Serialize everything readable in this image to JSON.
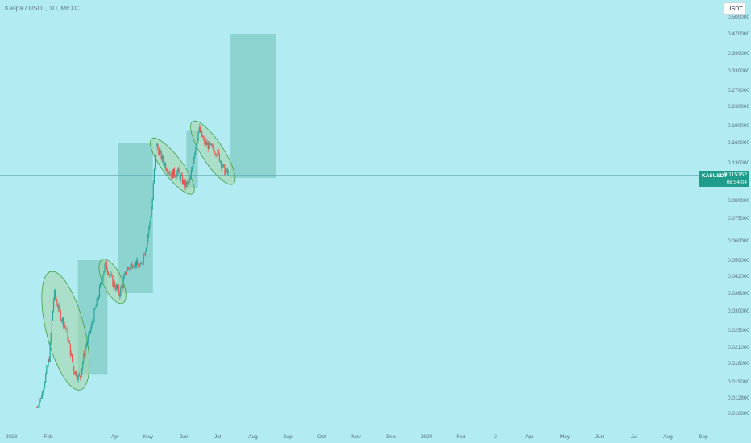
{
  "header": {
    "title": "Kaspa / USDT, 1D, MEXC",
    "currency_button": "USDT"
  },
  "price_tag": {
    "symbol": "KASUSDT",
    "price": "0.115352",
    "countdown": "08:54:04",
    "color": "#1f9d8a"
  },
  "colors": {
    "background": "#b2ebf2",
    "up": "#26a69a",
    "down": "#ef5350",
    "box": "#80cbc4",
    "ellipse_fill": "#a5d6a7",
    "ellipse_stroke": "#43a047"
  },
  "chart_data": {
    "type": "candlestick",
    "symbol": "KASUSDT",
    "exchange": "MEXC",
    "timeframe": "1D",
    "y_scale": "log",
    "y_ticks": [
      "0.500000",
      "0.470000",
      "0.390000",
      "0.330000",
      "0.270000",
      "0.230000",
      "0.190000",
      "0.160000",
      "0.130000",
      "0.090000",
      "0.075000",
      "0.060000",
      "0.050000",
      "0.042000",
      "0.036000",
      "0.030000",
      "0.025000",
      "0.021000",
      "0.018000",
      "0.015000",
      "0.012800",
      "0.010000"
    ],
    "x_ticks": [
      "2023",
      "Feb",
      "Apr",
      "May",
      "Jun",
      "Jul",
      "Aug",
      "Sep",
      "Oct",
      "Nov",
      "Dec",
      "2024",
      "Feb",
      "2",
      "Apr",
      "May",
      "Jun",
      "Jul",
      "Aug",
      "Sep"
    ],
    "last_price": 0.115352,
    "approx_price_path": [
      {
        "date": "2023-02-28",
        "price": 0.011
      },
      {
        "date": "2023-03-12",
        "price": 0.0135
      },
      {
        "date": "2023-03-28",
        "price": 0.019
      },
      {
        "date": "2023-04-08",
        "price": 0.036
      },
      {
        "date": "2023-04-22",
        "price": 0.029
      },
      {
        "date": "2023-05-06",
        "price": 0.025
      },
      {
        "date": "2023-05-22",
        "price": 0.017
      },
      {
        "date": "2023-06-05",
        "price": 0.0155
      },
      {
        "date": "2023-06-18",
        "price": 0.021
      },
      {
        "date": "2023-07-02",
        "price": 0.026
      },
      {
        "date": "2023-07-16",
        "price": 0.034
      },
      {
        "date": "2023-08-02",
        "price": 0.048
      },
      {
        "date": "2023-08-18",
        "price": 0.04
      },
      {
        "date": "2023-09-04",
        "price": 0.036
      },
      {
        "date": "2023-09-20",
        "price": 0.045
      },
      {
        "date": "2023-10-06",
        "price": 0.049
      },
      {
        "date": "2023-10-20",
        "price": 0.046
      },
      {
        "date": "2023-11-05",
        "price": 0.06
      },
      {
        "date": "2023-11-16",
        "price": 0.085
      },
      {
        "date": "2023-11-25",
        "price": 0.158
      },
      {
        "date": "2023-12-10",
        "price": 0.133
      },
      {
        "date": "2023-12-28",
        "price": 0.117
      },
      {
        "date": "2024-01-14",
        "price": 0.118
      },
      {
        "date": "2024-01-30",
        "price": 0.104
      },
      {
        "date": "2024-02-10",
        "price": 0.108
      },
      {
        "date": "2024-02-20",
        "price": 0.145
      },
      {
        "date": "2024-03-01",
        "price": 0.183
      },
      {
        "date": "2024-03-14",
        "price": 0.16
      },
      {
        "date": "2024-03-28",
        "price": 0.152
      },
      {
        "date": "2024-04-12",
        "price": 0.145
      },
      {
        "date": "2024-04-26",
        "price": 0.122
      },
      {
        "date": "2024-05-08",
        "price": 0.115352
      }
    ],
    "annotations": {
      "ellipses": [
        {
          "from": "2023-04-03",
          "to": "2023-06-04",
          "price_top": 0.042,
          "price_bottom": 0.0145
        },
        {
          "from": "2023-07-31",
          "to": "2023-09-06",
          "price_top": 0.048,
          "price_bottom": 0.034
        },
        {
          "from": "2023-11-22",
          "to": "2024-02-10",
          "price_top": 0.16,
          "price_bottom": 0.1
        },
        {
          "from": "2024-02-22",
          "to": "2024-05-12",
          "price_top": 0.19,
          "price_bottom": 0.11
        }
      ],
      "boxes": [
        {
          "from": "2023-06-01",
          "to": "2023-08-07",
          "price_top": 0.05,
          "price_bottom": 0.0162
        },
        {
          "from": "2023-09-01",
          "to": "2023-11-18",
          "price_top": 0.16,
          "price_bottom": 0.036
        },
        {
          "from": "2024-02-02",
          "to": "2024-02-28",
          "price_top": 0.18,
          "price_bottom": 0.102
        },
        {
          "from": "2024-05-12",
          "to": "2024-08-23",
          "price_top": 0.47,
          "price_bottom": 0.112
        }
      ]
    }
  }
}
